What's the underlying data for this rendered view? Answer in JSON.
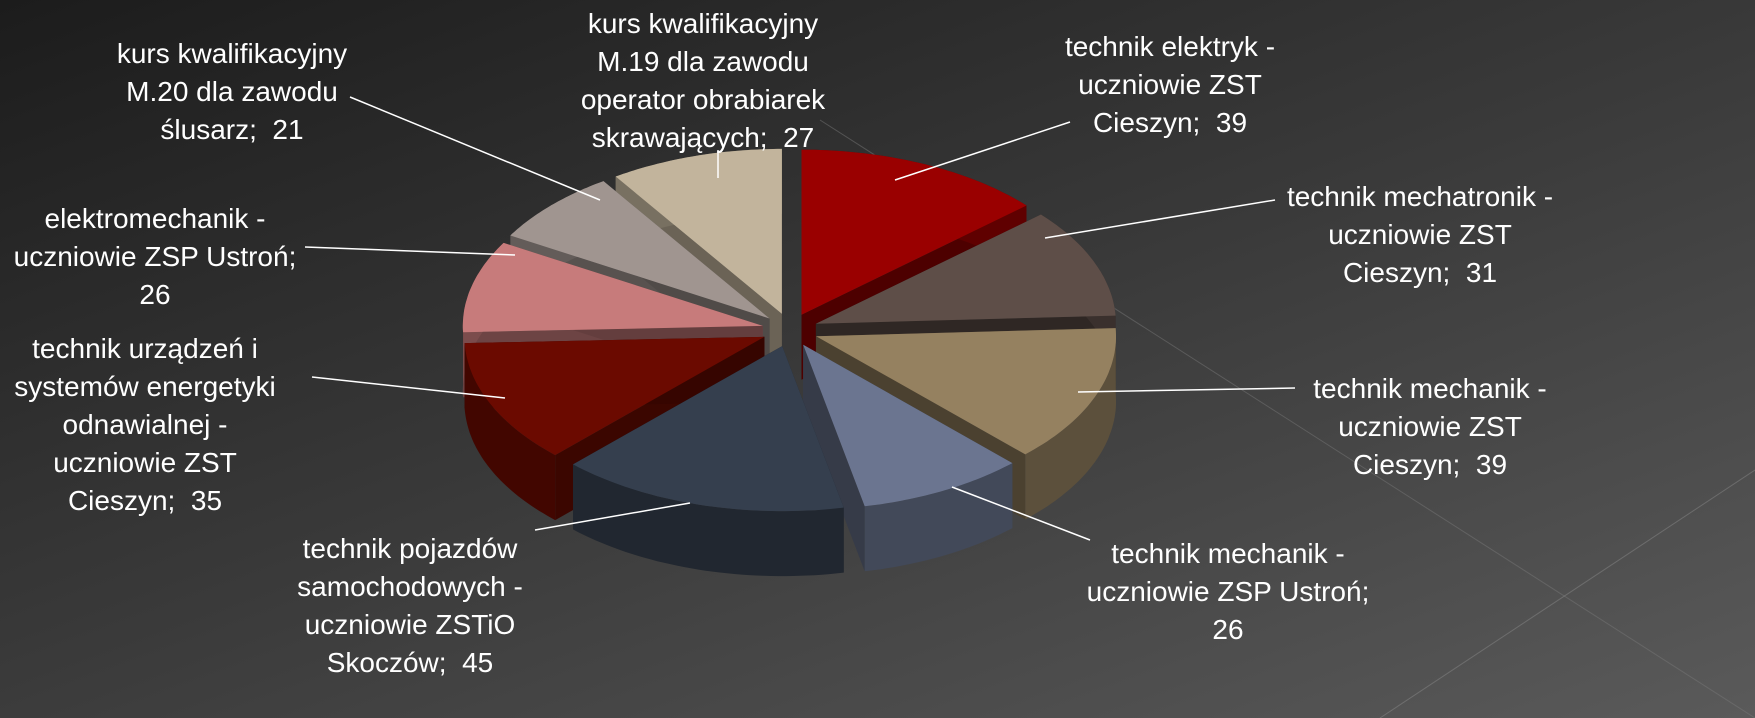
{
  "chart_data": {
    "type": "pie3d",
    "values": [
      39,
      31,
      39,
      26,
      45,
      35,
      26,
      21,
      27
    ],
    "value_labels": [
      "technik elektryk - uczniowie ZST Cieszyn;  39",
      "technik mechatronik - uczniowie ZST Cieszyn;  31",
      "technik mechanik - uczniowie ZST Cieszyn;  39",
      "technik mechanik - uczniowie ZSP Ustroń;  26",
      "technik pojazdów samochodowych - uczniowie ZSTiO Skoczów;  45",
      "technik urządzeń i systemów energetyki odnawialnej - uczniowie ZST Cieszyn;  35",
      "elektromechanik - uczniowie ZSP Ustroń;  26",
      "kurs kwalifikacyjny M.20 dla zawodu ślusarz;  21",
      "kurs kwalifikacyjny M.19 dla zawodu operator obrabiarek skrawających;  27"
    ],
    "colors": [
      "#9a0000",
      "#5e4e48",
      "#958160",
      "#6b7590",
      "#353f4e",
      "#6b0a00",
      "#c77b7b",
      "#a09590",
      "#c2b49c"
    ]
  }
}
